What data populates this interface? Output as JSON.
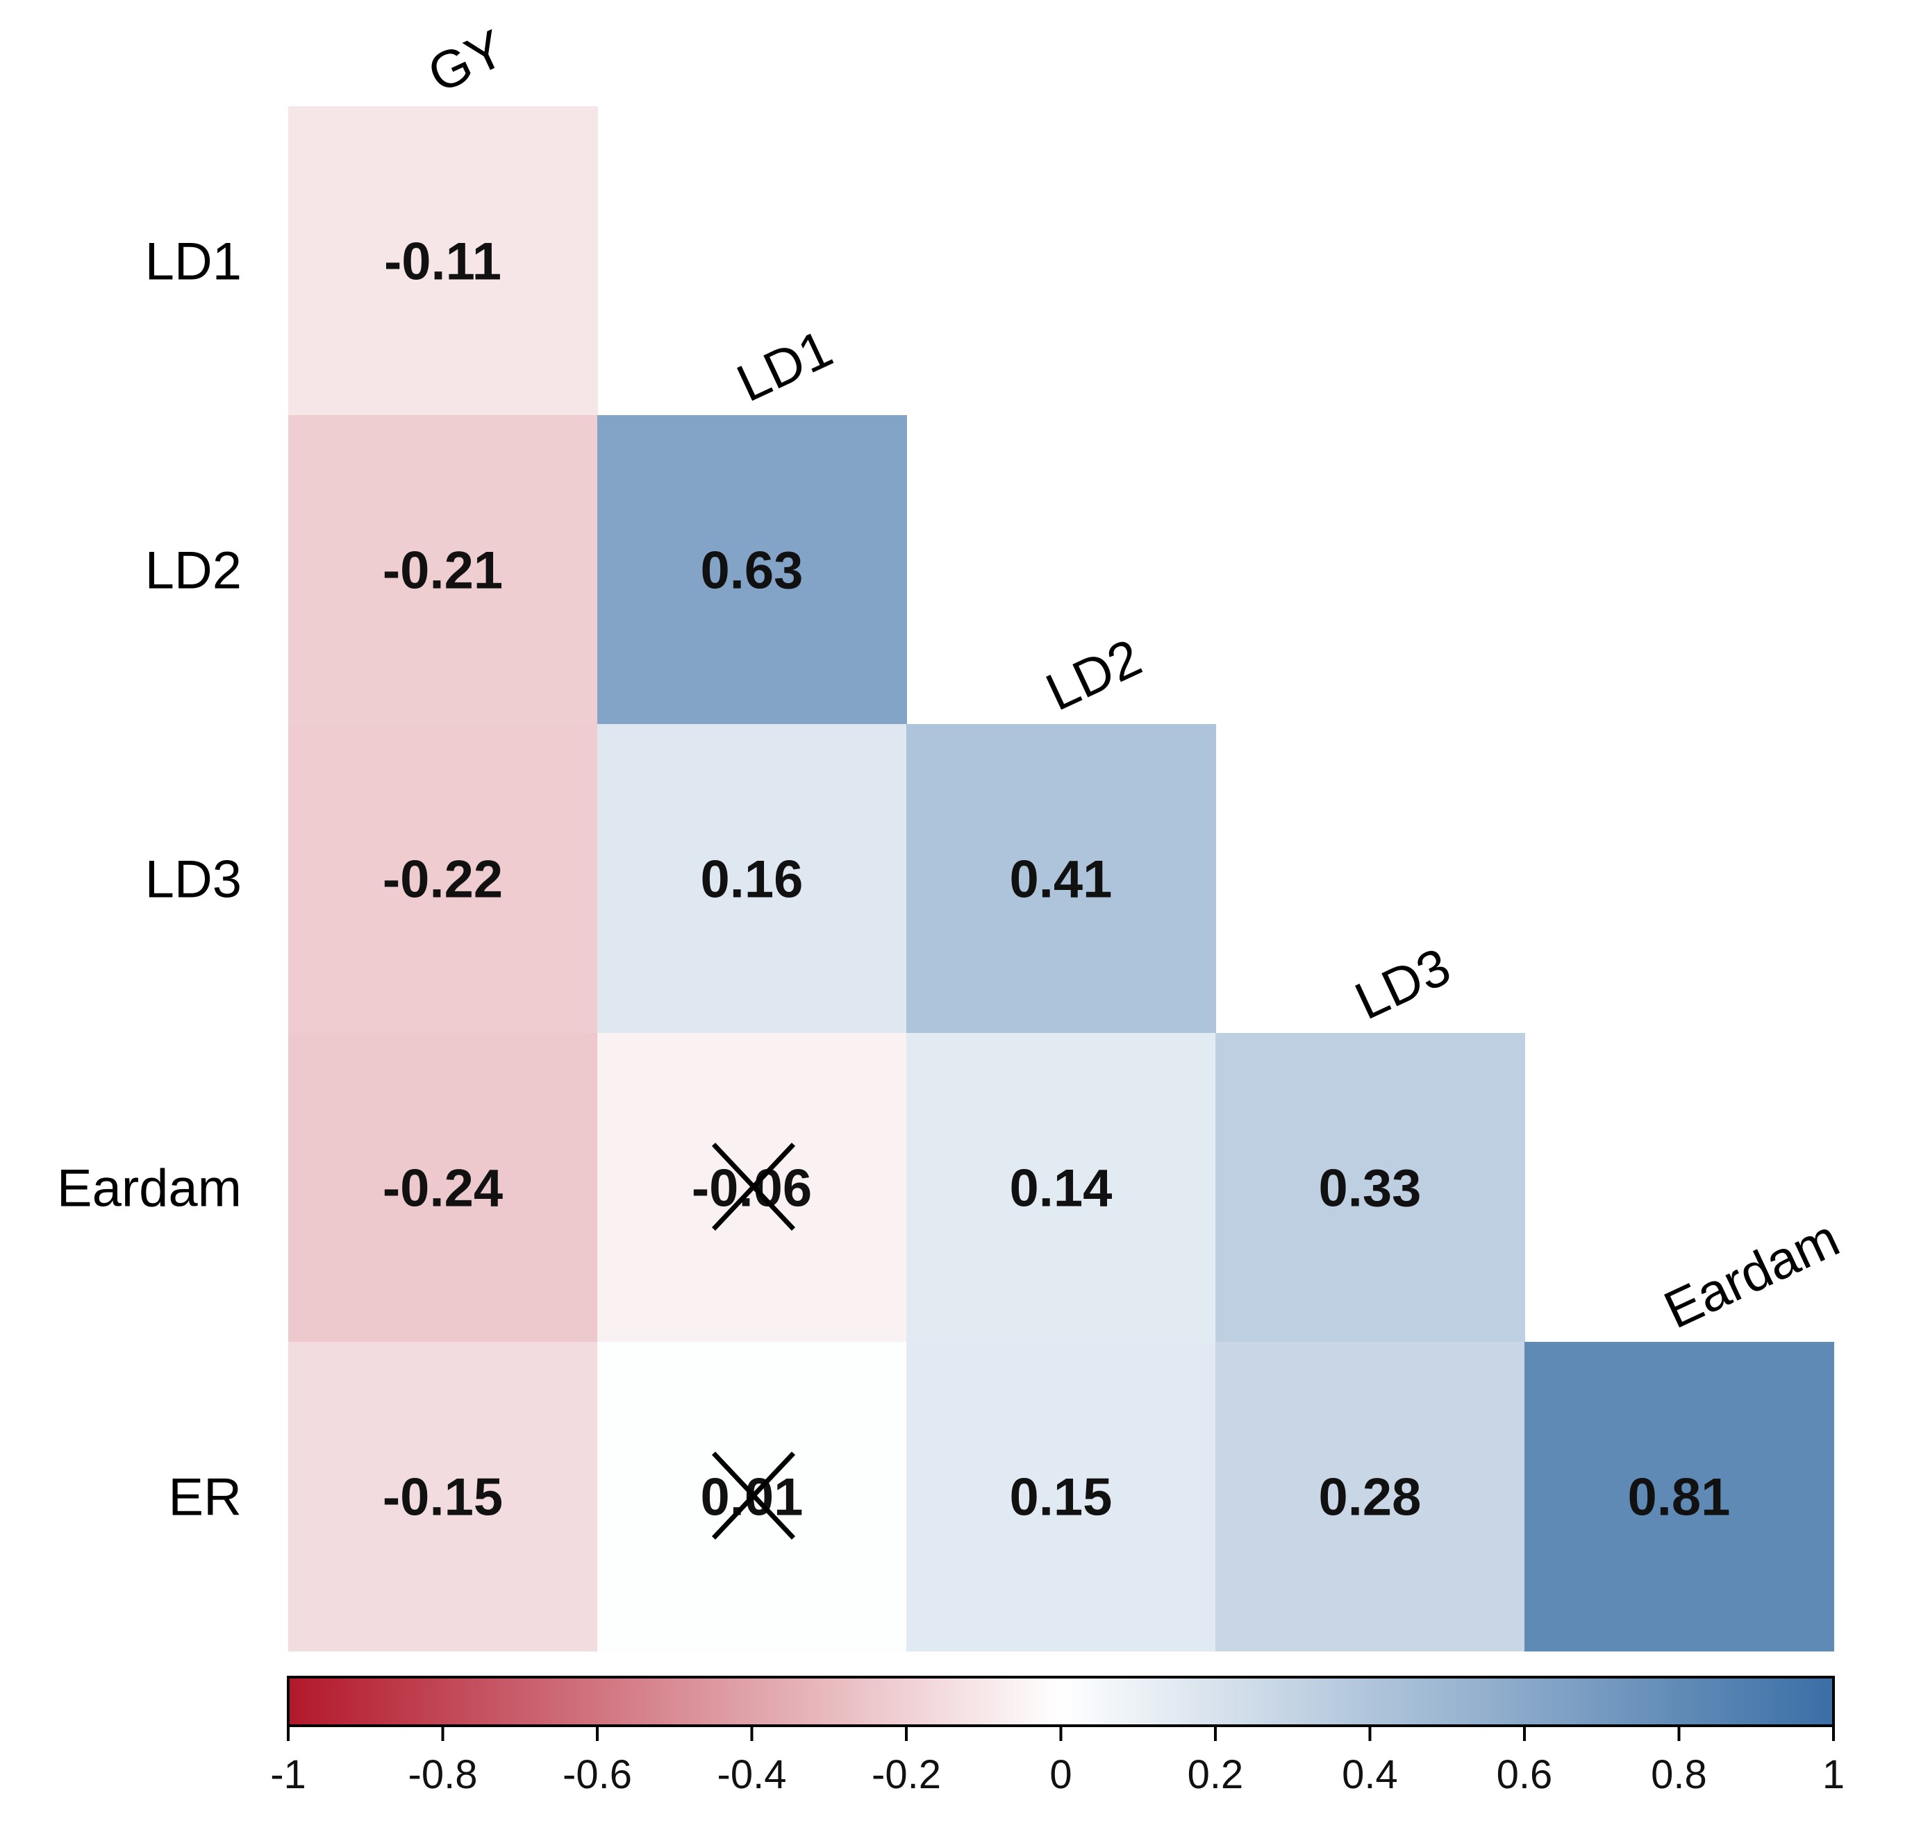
{
  "chart_data": {
    "type": "heatmap",
    "subtype": "lower-triangular correlation matrix",
    "column_labels": [
      "GY",
      "LD1",
      "LD2",
      "LD3",
      "Eardam"
    ],
    "row_labels": [
      "LD1",
      "LD2",
      "LD3",
      "Eardam",
      "ER"
    ],
    "values": [
      [
        -0.11,
        null,
        null,
        null,
        null
      ],
      [
        -0.21,
        0.63,
        null,
        null,
        null
      ],
      [
        -0.22,
        0.16,
        0.41,
        null,
        null
      ],
      [
        -0.24,
        -0.06,
        0.14,
        0.33,
        null
      ],
      [
        -0.15,
        0.01,
        0.15,
        0.28,
        0.81
      ]
    ],
    "value_labels": [
      [
        "-0.11",
        "",
        "",
        "",
        ""
      ],
      [
        "-0.21",
        "0.63",
        "",
        "",
        ""
      ],
      [
        "-0.22",
        "0.16",
        "0.41",
        "",
        ""
      ],
      [
        "-0.24",
        "-0.06",
        "0.14",
        "0.33",
        ""
      ],
      [
        "-0.15",
        "0.01",
        "0.15",
        "0.28",
        "0.81"
      ]
    ],
    "crossed_out": [
      [
        false,
        false,
        false,
        false,
        false
      ],
      [
        false,
        false,
        false,
        false,
        false
      ],
      [
        false,
        false,
        false,
        false,
        false
      ],
      [
        false,
        true,
        false,
        false,
        false
      ],
      [
        false,
        true,
        false,
        false,
        false
      ]
    ],
    "colorbar": {
      "range": [
        -1,
        1
      ],
      "ticks": [
        -1,
        -0.8,
        -0.6,
        -0.4,
        -0.2,
        0,
        0.2,
        0.4,
        0.6,
        0.8,
        1
      ],
      "tick_labels": [
        "-1",
        "-0.8",
        "-0.6",
        "-0.4",
        "-0.2",
        "0",
        "0.2",
        "0.4",
        "0.6",
        "0.8",
        "1"
      ],
      "colors": {
        "negative": "#b2182b",
        "neutral": "#ffffff",
        "positive": "#3a6ea5"
      }
    }
  }
}
